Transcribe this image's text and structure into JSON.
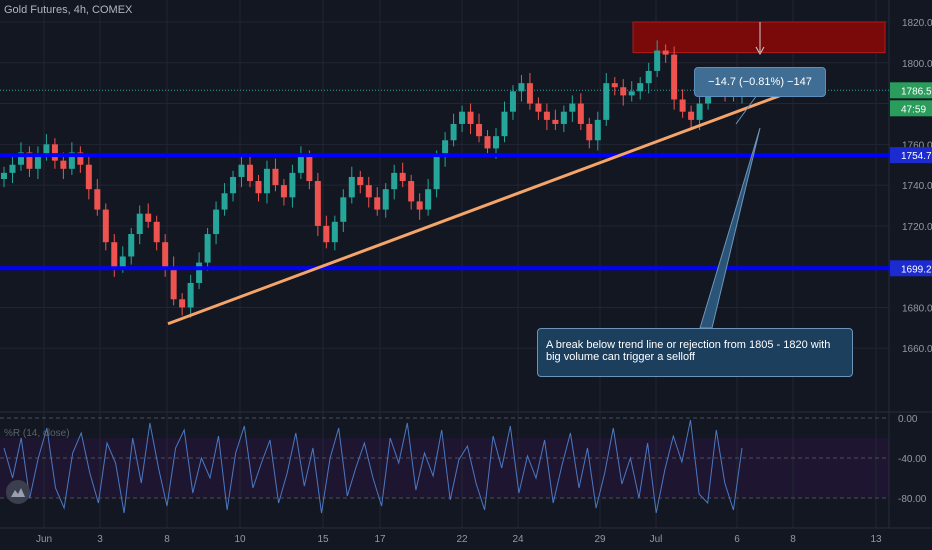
{
  "header": {
    "title": "Gold Futures, 4h, COMEX"
  },
  "indicator": {
    "title": "%R (14, close)"
  },
  "measure_label": "−14.7 (−0.81%) −147",
  "note": "A break below trend line or rejection from 1805 - 1820 with big volume can trigger a selloff",
  "colors": {
    "background": "#131722",
    "up": "#26a69a",
    "down": "#ef5350",
    "level_line": "#0000ff",
    "trend_line": "#f5a46a",
    "zone": "#7a0a0a",
    "price_badge": "#2a9d5c",
    "level_badge": "#1c2bd0",
    "wr_line": "#4a78c2"
  },
  "price_axis": {
    "ticks": [
      "1820.0",
      "1800.0",
      "1780.0",
      "1760.0",
      "1740.0",
      "1720.0",
      "1700.0",
      "1680.0",
      "1660.0"
    ],
    "badges": [
      {
        "label": "1786.5",
        "kind": "price"
      },
      {
        "label": "47:59",
        "kind": "timer"
      },
      {
        "label": "1754.7",
        "kind": "level"
      },
      {
        "label": "1699.2",
        "kind": "level"
      }
    ]
  },
  "indicator_axis": {
    "ticks": [
      "0.00",
      "-40.00",
      "-80.00"
    ]
  },
  "time_axis": {
    "ticks": [
      "Jun",
      "3",
      "8",
      "10",
      "15",
      "17",
      "22",
      "24",
      "29",
      "Jul",
      "6",
      "8",
      "13"
    ]
  },
  "chart_data": {
    "type": "candlestick",
    "title": "Gold Futures, 4h, COMEX",
    "ylim": [
      1650,
      1825
    ],
    "horizontal_levels": [
      1754.7,
      1699.2
    ],
    "resistance_zone": [
      1805,
      1820
    ],
    "trend_line": {
      "from": {
        "x": "Jun 8",
        "y": 1672
      },
      "to": {
        "x": "Jul 7",
        "y": 1787
      }
    },
    "last_price": 1786.5,
    "measure": "−14.7 (−0.81%) −147",
    "price_path": [
      1746,
      1750,
      1756,
      1748,
      1755,
      1760,
      1752,
      1748,
      1756,
      1750,
      1738,
      1728,
      1712,
      1700,
      1705,
      1716,
      1726,
      1722,
      1712,
      1700,
      1684,
      1680,
      1692,
      1702,
      1716,
      1728,
      1736,
      1744,
      1750,
      1742,
      1736,
      1748,
      1740,
      1734,
      1746,
      1754,
      1742,
      1720,
      1712,
      1722,
      1734,
      1744,
      1740,
      1734,
      1728,
      1738,
      1746,
      1742,
      1732,
      1728,
      1738,
      1754,
      1762,
      1770,
      1776,
      1770,
      1764,
      1758,
      1764,
      1776,
      1786,
      1790,
      1780,
      1776,
      1772,
      1770,
      1776,
      1780,
      1770,
      1762,
      1772,
      1790,
      1788,
      1784,
      1786,
      1790,
      1796,
      1806,
      1804,
      1782,
      1776,
      1772,
      1780,
      1788,
      1791,
      1786,
      1784,
      1788
    ],
    "williams_r": {
      "name": "%R (14, close)",
      "ylim": [
        -100,
        0
      ],
      "values": [
        -30,
        -60,
        -20,
        -80,
        -40,
        -10,
        -70,
        -90,
        -35,
        -15,
        -55,
        -85,
        -25,
        -45,
        -95,
        -20,
        -65,
        -5,
        -50,
        -88,
        -30,
        -12,
        -75,
        -40,
        -60,
        -18,
        -92,
        -35,
        -8,
        -70,
        -45,
        -22,
        -85,
        -55,
        -15,
        -68,
        -30,
        -95,
        -40,
        -10,
        -78,
        -50,
        -25,
        -60,
        -88,
        -20,
        -45,
        -5,
        -72,
        -35,
        -58,
        -12,
        -82,
        -42,
        -28,
        -65,
        -92,
        -18,
        -50,
        -8,
        -75,
        -38,
        -60,
        -22,
        -85,
        -48,
        -15,
        -70,
        -30,
        -90,
        -55,
        -10,
        -66,
        -40,
        -80,
        -25,
        -95,
        -52,
        -18,
        -44,
        -2,
        -76,
        -85,
        -12,
        -65,
        -92,
        -30
      ]
    }
  }
}
